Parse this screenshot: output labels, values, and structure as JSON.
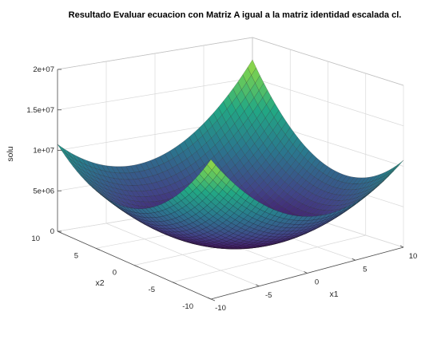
{
  "chart_data": {
    "type": "surface",
    "title": "Resultado Evaluar ecuacion con Matriz A igual a la matriz identidad escalada cl.",
    "xlabel": "x1",
    "ylabel": "x2",
    "zlabel": "solu",
    "xlim": [
      -10,
      10
    ],
    "ylim": [
      -10,
      10
    ],
    "zlim": [
      0,
      20000000
    ],
    "x_ticks": [
      -10,
      -5,
      0,
      5,
      10
    ],
    "y_ticks": [
      -10,
      -5,
      0,
      5,
      10
    ],
    "z_ticks": [
      0,
      5000000,
      10000000,
      15000000,
      20000000
    ],
    "x_tick_labels": [
      "-10",
      "-5",
      "0",
      "5",
      "10"
    ],
    "y_tick_labels": [
      "-10",
      "-5",
      "0",
      "5",
      "10"
    ],
    "z_tick_labels": [
      "0",
      "5e+06",
      "1e+07",
      "1.5e+07",
      "2e+07"
    ],
    "grid": true,
    "colormap": [
      "#440154",
      "#414487",
      "#2a788e",
      "#22a884",
      "#7ad151",
      "#fde725"
    ],
    "surface": {
      "x_range": [
        -10,
        10
      ],
      "y_range": [
        -10,
        10
      ],
      "samples": 41,
      "corner_values": {
        "x1=-10,x2=-10": 7000000,
        "x1=10,x2=10": 20000000,
        "x1=-10,x2=10": 14000000,
        "x1=10,x2=-10": 14000000
      },
      "minimum": {
        "x1": 0,
        "x2": 0,
        "value": 0
      }
    }
  }
}
